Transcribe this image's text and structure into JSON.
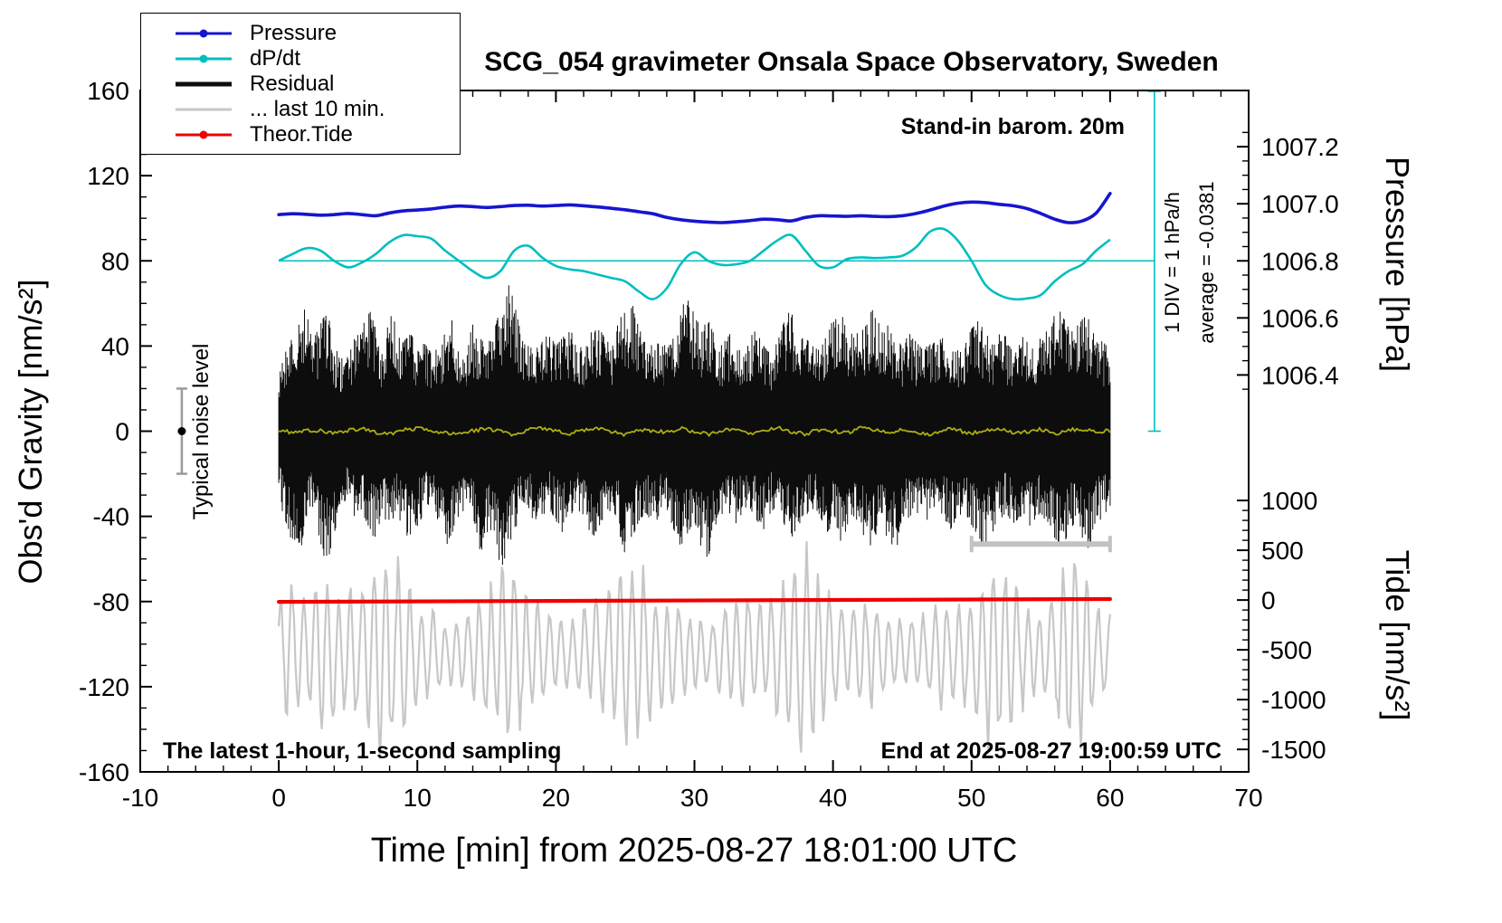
{
  "title": "SCG_054 gravimeter Onsala Space Observatory, Sweden",
  "annotations": {
    "standin": "Stand-in barom. 20m",
    "div_scale": "1 DIV = 1 hPa/h",
    "average": "average = -0.0381",
    "noise_level": "Typical noise level",
    "sampling": "The latest 1-hour, 1-second sampling",
    "end_time": "End at 2025-08-27 19:00:59 UTC"
  },
  "legend": {
    "items": [
      {
        "label": "Pressure",
        "color": "#1515d0",
        "dot": true,
        "thick": false
      },
      {
        "label": "dP/dt",
        "color": "#00bfbf",
        "dot": true,
        "thick": false
      },
      {
        "label": "Residual",
        "color": "#0d0d0d",
        "dot": false,
        "thick": true
      },
      {
        "label": "... last 10 min.",
        "color": "#c7c7c7",
        "dot": false,
        "thick": false
      },
      {
        "label": "Theor.Tide",
        "color": "#ee0000",
        "dot": true,
        "thick": false
      }
    ]
  },
  "axes": {
    "x": {
      "label": "Time [min] from 2025-08-27 18:01:00 UTC",
      "min": -10,
      "max": 70,
      "tick_values": [
        -10,
        0,
        10,
        20,
        30,
        40,
        50,
        60,
        70
      ],
      "tick_labels": [
        "-10",
        "0",
        "10",
        "20",
        "30",
        "40",
        "50",
        "60",
        "70"
      ],
      "minor_step": 2
    },
    "gravity": {
      "label": "Obs'd Gravity [nm/s²]",
      "min": -160,
      "max": 160,
      "tick_values": [
        160,
        120,
        80,
        40,
        0,
        -40,
        -80,
        -120,
        -160
      ],
      "tick_labels": [
        "160",
        "120",
        "80",
        "40",
        "0",
        "-40",
        "-80",
        "-120",
        "-160"
      ],
      "minor_step": 10
    },
    "pressure": {
      "label": "Pressure [hPa]",
      "ref_hpa": 1006.8,
      "ref_g": 80,
      "g_per_hpa": 134,
      "tick_values": [
        1007.2,
        1007.0,
        1006.8,
        1006.6,
        1006.4
      ],
      "tick_labels": [
        "1007.2",
        "1007.0",
        "1006.8",
        "1006.6",
        "1006.4"
      ],
      "minor_step": 0.05,
      "minor_min": 1006.35,
      "minor_max": 1007.25
    },
    "tide": {
      "label": "Tide [nm/s²]",
      "ref_tide": 0,
      "ref_g": -79.3,
      "g_per_unit": 0.04676,
      "tick_values": [
        1000,
        500,
        0,
        -500,
        -1000,
        -1500
      ],
      "tick_labels": [
        "1000",
        "500",
        "0",
        "-500",
        "-1000",
        "-1500"
      ],
      "minor_step": 100
    },
    "dpdt": {
      "zero_g": 80,
      "g_per_unit": 160.6
    }
  },
  "chart_data": {
    "type": "line",
    "title": "SCG_054 gravimeter Onsala Space Observatory, Sweden",
    "xlabel": "Time [min] from 2025-08-27 18:01:00 UTC",
    "ylabel_left": "Obs'd Gravity [nm/s²]",
    "ylabel_right_top": "Pressure [hPa]",
    "ylabel_right_bottom": "Tide [nm/s²]",
    "xlim": [
      -10,
      70
    ],
    "ylim_gravity": [
      -160,
      160
    ],
    "legend_entries": [
      "Pressure",
      "dP/dt",
      "Residual",
      "... last 10 min.",
      "Theor.Tide"
    ],
    "seed": 20250827,
    "x_minutes": [
      0,
      1,
      2,
      3,
      4,
      5,
      6,
      7,
      8,
      9,
      10,
      11,
      12,
      13,
      14,
      15,
      16,
      17,
      18,
      19,
      20,
      21,
      22,
      23,
      24,
      25,
      26,
      27,
      28,
      29,
      30,
      31,
      32,
      33,
      34,
      35,
      36,
      37,
      38,
      39,
      40,
      41,
      42,
      43,
      44,
      45,
      46,
      47,
      48,
      49,
      50,
      51,
      52,
      53,
      54,
      55,
      56,
      57,
      58,
      59,
      60
    ],
    "series": {
      "pressure_hpa": [
        1006.962,
        1006.965,
        1006.963,
        1006.96,
        1006.962,
        1006.966,
        1006.962,
        1006.958,
        1006.968,
        1006.975,
        1006.978,
        1006.982,
        1006.988,
        1006.992,
        1006.99,
        1006.987,
        1006.99,
        1006.994,
        1006.995,
        1006.992,
        1006.994,
        1006.996,
        1006.993,
        1006.989,
        1006.984,
        1006.979,
        1006.972,
        1006.965,
        1006.952,
        1006.944,
        1006.939,
        1006.936,
        1006.934,
        1006.937,
        1006.941,
        1006.946,
        1006.944,
        1006.94,
        1006.952,
        1006.958,
        1006.957,
        1006.956,
        1006.958,
        1006.956,
        1006.955,
        1006.958,
        1006.966,
        1006.978,
        1006.992,
        1007.002,
        1007.006,
        1007.004,
        1006.998,
        1006.993,
        1006.983,
        1006.966,
        1006.946,
        1006.934,
        1006.94,
        1006.968,
        1007.036
      ],
      "dpdt_hpa_per_h": [
        0.0,
        0.02,
        0.037,
        0.03,
        0.0,
        -0.019,
        -0.005,
        0.02,
        0.055,
        0.075,
        0.072,
        0.065,
        0.03,
        0.0,
        -0.03,
        -0.05,
        -0.03,
        0.03,
        0.044,
        0.01,
        -0.015,
        -0.025,
        -0.03,
        -0.04,
        -0.05,
        -0.06,
        -0.09,
        -0.112,
        -0.08,
        -0.01,
        0.025,
        0.0,
        -0.012,
        -0.01,
        0.0,
        0.03,
        0.06,
        0.075,
        0.03,
        -0.015,
        -0.019,
        0.005,
        0.01,
        0.008,
        0.01,
        0.015,
        0.04,
        0.085,
        0.093,
        0.06,
        0.0,
        -0.07,
        -0.1,
        -0.112,
        -0.11,
        -0.1,
        -0.06,
        -0.03,
        -0.01,
        0.03,
        0.062
      ],
      "residual_envelope": {
        "x_step": 0.5,
        "lo": [
          -30,
          -45,
          -52,
          -68,
          -40,
          -35,
          -55,
          -62,
          -48,
          -36,
          -30,
          -42,
          -38,
          -45,
          -52,
          -40,
          -44,
          -38,
          -46,
          -52,
          -45,
          -38,
          -35,
          -42,
          -55,
          -48,
          -40,
          -36,
          -44,
          -58,
          -50,
          -44,
          -70,
          -66,
          -48,
          -40,
          -36,
          -44,
          -40,
          -36,
          -42,
          -48,
          -40,
          -36,
          -44,
          -52,
          -46,
          -40,
          -38,
          -46,
          -58,
          -50,
          -42,
          -38,
          -44,
          -40,
          -36,
          -46,
          -54,
          -48,
          -42,
          -55,
          -60,
          -46,
          -40,
          -38,
          -44,
          -40,
          -36,
          -42,
          -46,
          -38,
          -35,
          -44,
          -50,
          -44,
          -40,
          -36,
          -42,
          -48,
          -44,
          -52,
          -46,
          -40,
          -44,
          -56,
          -50,
          -44,
          -52,
          -58,
          -46,
          -40,
          -38,
          -44,
          -40,
          -36,
          -42,
          -46,
          -40,
          -38,
          -44,
          -50,
          -56,
          -48,
          -42,
          -38,
          -44,
          -40,
          -46,
          -42,
          -38,
          -44,
          -50,
          -55,
          -48,
          -42,
          -50,
          -56,
          -44,
          -40,
          -35
        ],
        "hi": [
          28,
          38,
          44,
          55,
          58,
          45,
          50,
          57,
          40,
          34,
          36,
          44,
          52,
          58,
          48,
          38,
          55,
          50,
          42,
          46,
          40,
          44,
          36,
          40,
          46,
          52,
          44,
          38,
          50,
          44,
          40,
          46,
          58,
          72,
          60,
          45,
          40,
          38,
          42,
          46,
          40,
          44,
          48,
          42,
          38,
          46,
          50,
          44,
          40,
          52,
          56,
          60,
          48,
          42,
          40,
          46,
          38,
          44,
          58,
          62,
          55,
          48,
          52,
          44,
          40,
          46,
          42,
          38,
          44,
          48,
          40,
          36,
          42,
          52,
          58,
          50,
          44,
          40,
          38,
          46,
          52,
          56,
          50,
          44,
          48,
          54,
          58,
          46,
          50,
          44,
          40,
          46,
          42,
          38,
          44,
          40,
          46,
          42,
          38,
          44,
          48,
          52,
          46,
          42,
          50,
          44,
          40,
          46,
          42,
          38,
          44,
          50,
          56,
          60,
          52,
          46,
          58,
          52,
          46,
          42,
          38
        ]
      },
      "residual_smoothed": [
        0.3,
        -0.6,
        0.8,
        0.2,
        -0.9,
        0.5,
        1.1,
        -0.4,
        -1.2,
        0.6,
        1.4,
        0.2,
        -0.8,
        -1.5,
        0.4,
        1.0,
        -0.3,
        -1.8,
        0.9,
        1.6,
        0.1,
        -1.1,
        0.7,
        1.3,
        -0.5,
        -1.4,
        0.8,
        0.3,
        -0.7,
        1.2,
        -0.2,
        -1.6,
        0.5,
        1.5,
        -0.9,
        0.2,
        1.8,
        -0.6,
        -1.3,
        0.7,
        0.1,
        -1.0,
        1.4,
        0.6,
        -0.8,
        1.1,
        -0.2,
        -1.5,
        0.9,
        0.4,
        -1.1,
        0.6,
        1.2,
        -0.7,
        -0.3,
        1.0,
        -1.2,
        0.5,
        0.8,
        -0.4,
        0.2
      ],
      "last10min_zoom": {
        "x_step": 0.5,
        "center_g": -104,
        "period_min": 0.85,
        "amplitude_g": [
          25,
          28,
          30,
          26,
          22,
          30,
          35,
          32,
          28,
          24,
          26,
          30,
          34,
          38,
          42,
          45,
          44,
          40,
          34,
          28,
          24,
          20,
          18,
          16,
          15,
          14,
          15,
          18,
          22,
          26,
          28,
          32,
          36,
          40,
          36,
          30,
          26,
          22,
          20,
          18,
          16,
          15,
          16,
          18,
          20,
          22,
          24,
          26,
          30,
          34,
          38,
          40,
          38,
          34,
          30,
          26,
          24,
          22,
          20,
          18,
          17,
          16,
          15,
          16,
          18,
          20,
          22,
          24,
          26,
          24,
          22,
          24,
          28,
          34,
          40,
          44,
          46,
          42,
          36,
          30,
          26,
          22,
          20,
          20,
          22,
          24,
          22,
          20,
          18,
          17,
          16,
          15,
          16,
          18,
          20,
          22,
          24,
          22,
          20,
          22,
          26,
          32,
          38,
          42,
          40,
          36,
          30,
          26,
          22,
          20,
          18,
          22,
          28,
          34,
          40,
          42,
          38,
          32,
          26,
          22,
          20
        ]
      },
      "theor_tide": {
        "points": [
          [
            0,
            -18
          ],
          [
            60,
            10
          ]
        ]
      }
    },
    "markers": {
      "noise_bar": {
        "x": -7,
        "g_lo": -20,
        "g_hi": 20
      },
      "last10_bar": {
        "x0": 50,
        "x1": 60,
        "g": -53
      },
      "dpdt_zero_line": {
        "g": 80,
        "x0": 0,
        "x1": 63.2
      },
      "div_bracket": {
        "x": 63.2,
        "g_top": 160,
        "g_bottom": 0
      }
    }
  }
}
